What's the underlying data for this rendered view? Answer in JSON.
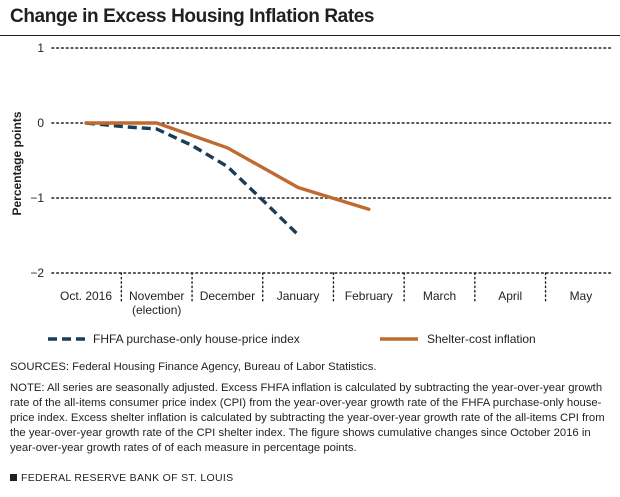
{
  "title": "Change in Excess Housing Inflation Rates",
  "chart_data": {
    "type": "line",
    "ylabel": "Percentage points",
    "ylim": [
      -2,
      1
    ],
    "yticks": [
      1,
      0,
      -1,
      -2
    ],
    "ytick_labels": [
      "1",
      "0",
      "−1",
      "−2"
    ],
    "grid": true,
    "categories": [
      "Oct. 2016",
      "November (election)",
      "December",
      "January",
      "February",
      "March",
      "April",
      "May"
    ],
    "category_labels": [
      [
        "Oct. 2016"
      ],
      [
        "November",
        "(election)"
      ],
      [
        "December"
      ],
      [
        "January"
      ],
      [
        "February"
      ],
      [
        "March"
      ],
      [
        "April"
      ],
      [
        "May"
      ]
    ],
    "series": [
      {
        "name": "FHFA purchase-only house-price index",
        "color": "#1d3c55",
        "dash": true,
        "points": [
          [
            0,
            0
          ],
          [
            0.55,
            -0.05
          ],
          [
            1,
            -0.08
          ],
          [
            1.5,
            -0.3
          ],
          [
            2,
            -0.58
          ],
          [
            2.5,
            -1.03
          ],
          [
            3,
            -1.49
          ]
        ]
      },
      {
        "name": "Shelter-cost inflation",
        "color": "#bf6a30",
        "dash": false,
        "points": [
          [
            0,
            0
          ],
          [
            0.5,
            0
          ],
          [
            1,
            0
          ],
          [
            2,
            -0.33
          ],
          [
            3,
            -0.86
          ],
          [
            4,
            -1.15
          ]
        ]
      }
    ],
    "legend_position": "bottom"
  },
  "notes": {
    "sources": "SOURCES: Federal Housing Finance Agency, Bureau of Labor Statistics.",
    "note": "NOTE: All series are seasonally adjusted. Excess FHFA inflation is calculated by subtracting the year-over-year growth rate of the all-items consumer price index (CPI) from the year-over-year growth rate of the FHFA purchase-only house-price index. Excess shelter inflation is calculated by subtracting the year-over-year growth rate of the all-items CPI from the year-over-year growth rate of the CPI shelter index. The figure shows cumulative changes since October 2016 in year-over-year growth rates of of each measure in percentage points."
  },
  "footer": "FEDERAL RESERVE BANK OF ST. LOUIS"
}
